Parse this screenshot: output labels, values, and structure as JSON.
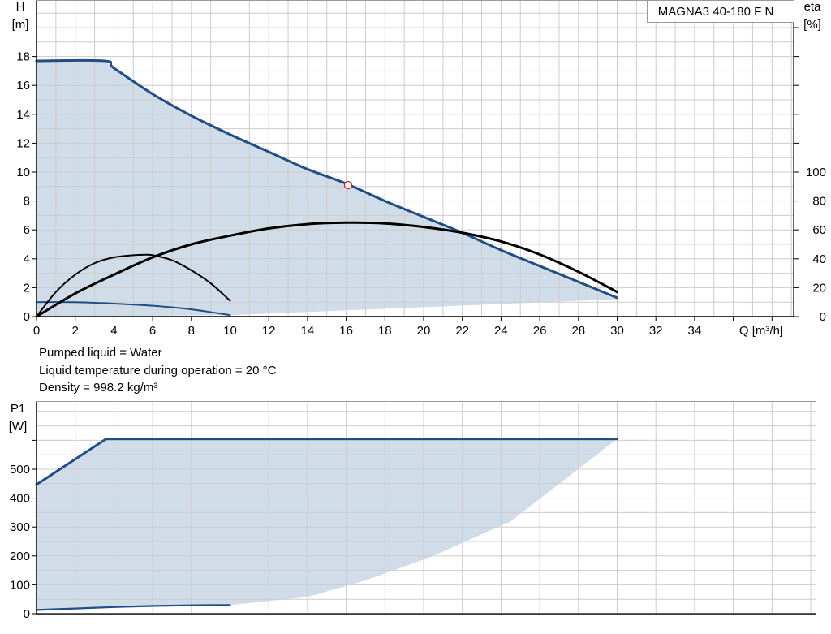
{
  "model_label": "MAGNA3 40-180 F N",
  "notes": [
    "Pumped liquid = Water",
    "Liquid temperature during operation = 20 °C",
    "Density = 998.2 kg/m³"
  ],
  "colors": {
    "curve_blue": "#1f4e85",
    "efficiency_black": "#000000",
    "area_fill": "#d0dce7",
    "grid": "#cccccc",
    "axis": "#000000",
    "marker": "#e02020"
  },
  "chart_data": [
    {
      "type": "line",
      "name": "head-curve",
      "xlabel": "Q [m³/h]",
      "ylabel_left": "H",
      "ylabel_left_unit": "[m]",
      "ylabel_right": "eta",
      "ylabel_right_unit": "[%]",
      "xlim": [
        0,
        39
      ],
      "ylim_left": [
        0,
        21.5
      ],
      "ylim_right": [
        0,
        215
      ],
      "x_ticks": [
        0,
        2,
        4,
        6,
        8,
        10,
        12,
        14,
        16,
        18,
        20,
        22,
        24,
        26,
        28,
        30,
        32,
        34
      ],
      "y_ticks_left": [
        0,
        2,
        4,
        6,
        8,
        10,
        12,
        14,
        16,
        18
      ],
      "y_ticks_right": [
        0,
        20,
        40,
        60,
        80,
        100
      ],
      "grid": true,
      "shaded_area": {
        "upper": {
          "x": [
            0,
            3.5,
            4,
            6,
            8,
            10,
            12,
            14,
            16,
            18,
            20,
            22,
            24,
            26,
            28,
            30
          ],
          "y": [
            17.7,
            17.7,
            17.2,
            15.4,
            13.9,
            12.6,
            11.4,
            10.2,
            9.2,
            8.0,
            6.9,
            5.8,
            4.6,
            3.5,
            2.4,
            1.3
          ]
        },
        "lower": {
          "x": [
            0,
            10,
            30
          ],
          "y": [
            0,
            0.1,
            1.2
          ]
        }
      },
      "series": [
        {
          "x": [
            0,
            3.5,
            4,
            6,
            8,
            10,
            12,
            14,
            16,
            18,
            20,
            22,
            24,
            26,
            28,
            30
          ],
          "y": [
            17.7,
            17.7,
            17.2,
            15.4,
            13.9,
            12.6,
            11.4,
            10.2,
            9.2,
            8.0,
            6.9,
            5.8,
            4.6,
            3.5,
            2.4,
            1.3
          ],
          "axis": "left",
          "color": "#1f4e85"
        },
        {
          "x": [
            0,
            2,
            4,
            6,
            8,
            10
          ],
          "y": [
            1.0,
            1.0,
            0.9,
            0.75,
            0.5,
            0.1
          ],
          "axis": "left",
          "color": "#1f4e85"
        },
        {
          "x": [
            0,
            2,
            4,
            6,
            8,
            10,
            12,
            14,
            16,
            18,
            20,
            22,
            24,
            26,
            28,
            30
          ],
          "y": [
            0,
            16,
            29,
            41,
            50,
            56,
            61,
            64,
            65,
            64.5,
            62,
            58,
            52,
            43,
            31,
            17
          ],
          "axis": "right",
          "color": "#000000"
        },
        {
          "x": [
            0,
            1,
            2,
            3,
            4,
            5,
            5.5,
            6,
            7,
            8,
            9,
            10
          ],
          "y": [
            0,
            17,
            29,
            37,
            41,
            42.5,
            42.8,
            42.5,
            39,
            32,
            23,
            11
          ],
          "axis": "right",
          "color": "#000000"
        }
      ],
      "duty_point": {
        "x": 16.1,
        "y": 9.1
      }
    },
    {
      "type": "line",
      "name": "power-curve",
      "ylabel": "P1",
      "ylabel_unit": "[W]",
      "xlim": [
        0,
        39
      ],
      "ylim": [
        0,
        620
      ],
      "y_ticks": [
        0,
        100,
        200,
        300,
        400,
        500
      ],
      "grid": true,
      "shaded_area": {
        "upper": {
          "x": [
            0,
            3.6,
            30
          ],
          "y": [
            447,
            605,
            605
          ]
        },
        "lower": {
          "x": [
            0,
            10,
            14,
            17,
            20.5,
            24.5,
            27.5,
            30
          ],
          "y": [
            13,
            30,
            58,
            115,
            200,
            320,
            475,
            605
          ]
        }
      },
      "series": [
        {
          "x": [
            0,
            3.6,
            30
          ],
          "y": [
            447,
            605,
            605
          ],
          "color": "#1f4e85"
        },
        {
          "x": [
            0,
            2,
            4,
            6,
            8,
            10
          ],
          "y": [
            13,
            18,
            23,
            27,
            29,
            30
          ],
          "color": "#1f4e85"
        }
      ]
    }
  ]
}
